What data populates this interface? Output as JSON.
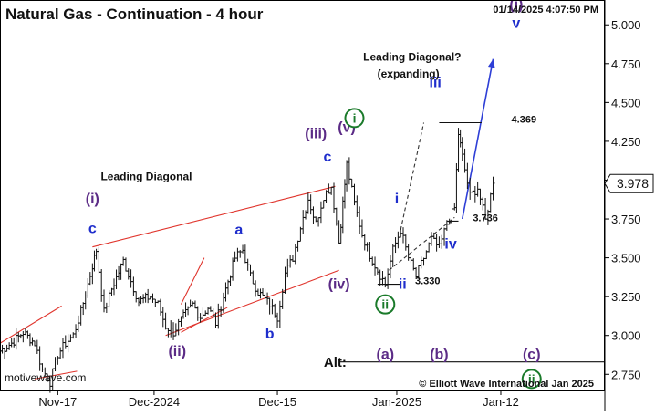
{
  "chart_data": {
    "type": "candlestick",
    "title": "Natural Gas - Continuation - 4 hour",
    "timestamp": "01/14/2025 4:07:50 PM",
    "watermark": "motivewave.com",
    "copyright": "© Elliott Wave International Jan 2025",
    "x_tick_labels": [
      {
        "label": "Nov-17",
        "x": 15
      },
      {
        "label": "Dec-2024",
        "x": 40
      },
      {
        "label": "Dec-15",
        "x": 72
      },
      {
        "label": "Jan-2025",
        "x": 103
      },
      {
        "label": "Jan-12",
        "x": 130
      }
    ],
    "x_range": [
      0,
      157
    ],
    "y_ticks": [
      2.75,
      3.0,
      3.25,
      3.5,
      3.75,
      4.0,
      4.25,
      4.5,
      4.75,
      5.0
    ],
    "y_tick_labels": [
      "2.750",
      "3.000",
      "3.250",
      "3.500",
      "3.750",
      "4.000",
      "4.250",
      "4.500",
      "4.750",
      "5.000"
    ],
    "ylim": [
      2.64,
      5.16
    ],
    "last_price": {
      "label": "3.978",
      "value": 3.978
    },
    "price_anchors": [
      [
        0,
        2.9
      ],
      [
        3,
        2.95
      ],
      [
        6,
        3.02
      ],
      [
        9,
        2.95
      ],
      [
        11,
        2.78
      ],
      [
        13,
        2.7
      ],
      [
        15,
        2.88
      ],
      [
        17,
        2.95
      ],
      [
        19,
        3.0
      ],
      [
        21,
        3.15
      ],
      [
        24,
        3.45
      ],
      [
        25,
        3.55
      ],
      [
        27,
        3.15
      ],
      [
        29,
        3.3
      ],
      [
        32,
        3.48
      ],
      [
        34,
        3.35
      ],
      [
        36,
        3.22
      ],
      [
        39,
        3.25
      ],
      [
        41,
        3.2
      ],
      [
        43,
        3.06
      ],
      [
        45,
        3.02
      ],
      [
        47,
        3.1
      ],
      [
        50,
        3.2
      ],
      [
        52,
        3.12
      ],
      [
        54,
        3.18
      ],
      [
        56,
        3.08
      ],
      [
        58,
        3.25
      ],
      [
        61,
        3.5
      ],
      [
        63,
        3.55
      ],
      [
        65,
        3.38
      ],
      [
        67,
        3.28
      ],
      [
        70,
        3.2
      ],
      [
        72,
        3.12
      ],
      [
        74,
        3.4
      ],
      [
        76,
        3.5
      ],
      [
        78,
        3.7
      ],
      [
        80,
        3.88
      ],
      [
        82,
        3.72
      ],
      [
        84,
        3.9
      ],
      [
        86,
        3.96
      ],
      [
        88,
        3.6
      ],
      [
        89,
        3.85
      ],
      [
        90,
        4.1
      ],
      [
        92,
        3.85
      ],
      [
        94,
        3.65
      ],
      [
        96,
        3.52
      ],
      [
        98,
        3.42
      ],
      [
        100,
        3.33
      ],
      [
        102,
        3.55
      ],
      [
        104,
        3.68
      ],
      [
        106,
        3.5
      ],
      [
        108,
        3.38
      ],
      [
        110,
        3.5
      ],
      [
        112,
        3.62
      ],
      [
        114,
        3.56
      ],
      [
        116,
        3.72
      ],
      [
        118,
        3.82
      ],
      [
        119,
        4.3
      ],
      [
        120,
        4.15
      ],
      [
        122,
        3.9
      ],
      [
        124,
        3.95
      ],
      [
        126,
        3.74
      ],
      [
        128,
        3.98
      ]
    ],
    "lines": [
      {
        "name": "leading-diagonal-upper",
        "style": "solid",
        "color": "#e0342c",
        "points": [
          [
            24,
            3.57
          ],
          [
            87,
            3.96
          ]
        ]
      },
      {
        "name": "leading-diagonal-lower",
        "style": "solid",
        "color": "#e0342c",
        "points": [
          [
            43,
            3.0
          ],
          [
            88,
            3.42
          ]
        ]
      },
      {
        "name": "left-channel-upper",
        "style": "solid",
        "color": "#e0342c",
        "points": [
          [
            0,
            2.95
          ],
          [
            16,
            3.19
          ]
        ]
      },
      {
        "name": "left-channel-lower",
        "style": "solid",
        "color": "#e0342c",
        "points": [
          [
            9,
            2.72
          ],
          [
            20,
            2.77
          ]
        ]
      },
      {
        "name": "wave-ii-upper",
        "style": "solid",
        "color": "#e0342c",
        "points": [
          [
            47,
            3.2
          ],
          [
            53,
            3.5
          ]
        ]
      },
      {
        "name": "wave-ii-lower",
        "style": "solid",
        "color": "#e0342c",
        "points": [
          [
            47,
            3.02
          ],
          [
            59,
            3.18
          ]
        ]
      },
      {
        "name": "expanding-upper",
        "style": "dashed",
        "color": "#333333",
        "points": [
          [
            104,
            3.68
          ],
          [
            110,
            4.37
          ]
        ]
      },
      {
        "name": "expanding-lower",
        "style": "dashed",
        "color": "#333333",
        "points": [
          [
            101,
            3.42
          ],
          [
            118,
            3.76
          ]
        ]
      },
      {
        "name": "projection",
        "style": "solid",
        "color": "#2e3fd6",
        "points": [
          [
            120,
            3.75
          ],
          [
            128,
            4.78
          ]
        ]
      },
      {
        "name": "alt-line",
        "style": "solid",
        "color": "#111111",
        "points": [
          [
            88,
            2.83
          ],
          [
            157,
            2.83
          ]
        ]
      },
      {
        "name": "level-4369",
        "style": "solid",
        "color": "#111111",
        "points": [
          [
            114,
            4.37
          ],
          [
            125,
            4.37
          ]
        ]
      },
      {
        "name": "level-3736",
        "style": "solid",
        "color": "#111111",
        "points": [
          [
            116,
            3.736
          ],
          [
            119,
            3.736
          ]
        ]
      },
      {
        "name": "level-3330",
        "style": "solid",
        "color": "#111111",
        "points": [
          [
            98,
            3.33
          ],
          [
            104,
            3.33
          ]
        ]
      }
    ],
    "annotations": [
      {
        "text": "Leading Diagonal",
        "x": 38,
        "y": 4.0,
        "color": "#111111",
        "size": 12,
        "weight": "bold"
      },
      {
        "text": "Leading Diagonal?",
        "x": 107,
        "y": 4.77,
        "color": "#111111",
        "size": 12,
        "weight": "bold"
      },
      {
        "text": "(expanding)",
        "x": 106,
        "y": 4.66,
        "color": "#111111",
        "size": 12,
        "weight": "bold"
      },
      {
        "text": "(i)",
        "x": 24,
        "y": 3.85,
        "color": "#5b2b86",
        "size": 16,
        "weight": "bold"
      },
      {
        "text": "c",
        "x": 24,
        "y": 3.66,
        "color": "#1f2ecc",
        "size": 16,
        "weight": "bold"
      },
      {
        "text": "(ii)",
        "x": 46,
        "y": 2.87,
        "color": "#5b2b86",
        "size": 16,
        "weight": "bold"
      },
      {
        "text": "a",
        "x": 62,
        "y": 3.65,
        "color": "#1f2ecc",
        "size": 16,
        "weight": "bold"
      },
      {
        "text": "b",
        "x": 70,
        "y": 2.98,
        "color": "#1f2ecc",
        "size": 16,
        "weight": "bold"
      },
      {
        "text": "c",
        "x": 85,
        "y": 4.12,
        "color": "#1f2ecc",
        "size": 16,
        "weight": "bold"
      },
      {
        "text": "(iii)",
        "x": 82,
        "y": 4.27,
        "color": "#5b2b86",
        "size": 16,
        "weight": "bold"
      },
      {
        "text": "(v)",
        "x": 90,
        "y": 4.31,
        "color": "#5b2b86",
        "size": 16,
        "weight": "bold"
      },
      {
        "text": "(iv)",
        "x": 88,
        "y": 3.3,
        "color": "#5b2b86",
        "size": 16,
        "weight": "bold"
      },
      {
        "text": "i",
        "x": 103,
        "y": 3.85,
        "color": "#1f2ecc",
        "size": 16,
        "weight": "bold"
      },
      {
        "text": "ii",
        "x": 104.5,
        "y": 3.3,
        "color": "#1f2ecc",
        "size": 16,
        "weight": "bold"
      },
      {
        "text": "iii",
        "x": 113,
        "y": 4.6,
        "color": "#1f2ecc",
        "size": 16,
        "weight": "bold"
      },
      {
        "text": "iv",
        "x": 117,
        "y": 3.56,
        "color": "#1f2ecc",
        "size": 16,
        "weight": "bold"
      },
      {
        "text": "v",
        "x": 134,
        "y": 4.98,
        "color": "#1f2ecc",
        "size": 16,
        "weight": "bold"
      },
      {
        "text": "(i)",
        "x": 134,
        "y": 5.1,
        "color": "#5b2b86",
        "size": 16,
        "weight": "bold"
      },
      {
        "text": "4.369",
        "x": 136,
        "y": 4.37,
        "color": "#111111",
        "size": 11,
        "weight": "bold"
      },
      {
        "text": "3.736",
        "x": 126,
        "y": 3.736,
        "color": "#111111",
        "size": 11,
        "weight": "bold"
      },
      {
        "text": "3.330",
        "x": 111,
        "y": 3.33,
        "color": "#111111",
        "size": 11,
        "weight": "bold"
      },
      {
        "text": "Alt:",
        "x": 87,
        "y": 2.8,
        "color": "#111111",
        "size": 15,
        "weight": "bold"
      },
      {
        "text": "(a)",
        "x": 100,
        "y": 2.85,
        "color": "#5b2b86",
        "size": 16,
        "weight": "bold"
      },
      {
        "text": "(b)",
        "x": 114,
        "y": 2.85,
        "color": "#5b2b86",
        "size": 16,
        "weight": "bold"
      },
      {
        "text": "(c)",
        "x": 138,
        "y": 2.85,
        "color": "#5b2b86",
        "size": 16,
        "weight": "bold"
      }
    ],
    "circled": [
      {
        "text": "i",
        "x": 92,
        "y": 4.4,
        "color": "#1a7a2a"
      },
      {
        "text": "ii",
        "x": 100,
        "y": 3.2,
        "color": "#1a7a2a"
      },
      {
        "text": "ii",
        "x": 138,
        "y": 2.72,
        "color": "#1a7a2a"
      }
    ]
  }
}
